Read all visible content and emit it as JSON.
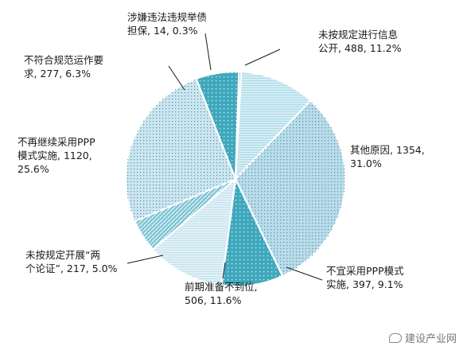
{
  "chart_data": {
    "type": "pie",
    "title": "",
    "slices": [
      {
        "label": [
          "未按规定进行信息",
          "公开, 488, 11.2%"
        ],
        "value": 488,
        "percent": 11.2,
        "color": "#a9dbe8",
        "pattern": "hlines"
      },
      {
        "label": [
          "其他原因, 1354,",
          "31.0%"
        ],
        "value": 1354,
        "percent": 31.0,
        "color": "#b9dcea",
        "pattern": "dots"
      },
      {
        "label": [
          "不宜采用PPP模式",
          "实施, 397, 9.1%"
        ],
        "value": 397,
        "percent": 9.1,
        "color": "#3fa8bd",
        "pattern": "dots-light"
      },
      {
        "label": [
          "前期准备不到位,",
          "506, 11.6%"
        ],
        "value": 506,
        "percent": 11.6,
        "color": "#c2e2ee",
        "pattern": "hlines"
      },
      {
        "label": [
          "未按规定开展“两",
          "个论证”, 217, 5.0%"
        ],
        "value": 217,
        "percent": 5.0,
        "color": "#7cc3d4",
        "pattern": "diag"
      },
      {
        "label": [
          "不再继续采用PPP",
          "模式实施, 1120,",
          "25.6%"
        ],
        "value": 1120,
        "percent": 25.6,
        "color": "#cbe6f0",
        "pattern": "dots"
      },
      {
        "label": [
          "不符合规范运作要",
          "求, 277, 6.3%"
        ],
        "value": 277,
        "percent": 6.3,
        "color": "#3fa8bd",
        "pattern": "dots-light"
      },
      {
        "label": [
          "涉嫌违法违规举债",
          "担保, 14, 0.3%"
        ],
        "value": 14,
        "percent": 0.3,
        "color": "#62b6c9",
        "pattern": "none"
      }
    ]
  },
  "watermark": {
    "text": "建设产业网",
    "icon": "wechat-bubble-icon"
  }
}
